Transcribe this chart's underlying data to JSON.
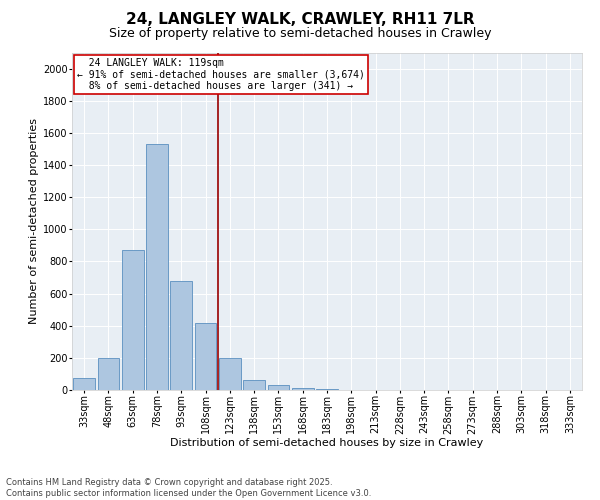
{
  "title": "24, LANGLEY WALK, CRAWLEY, RH11 7LR",
  "subtitle": "Size of property relative to semi-detached houses in Crawley",
  "xlabel": "Distribution of semi-detached houses by size in Crawley",
  "ylabel": "Number of semi-detached properties",
  "categories": [
    "33sqm",
    "48sqm",
    "63sqm",
    "78sqm",
    "93sqm",
    "108sqm",
    "123sqm",
    "138sqm",
    "153sqm",
    "168sqm",
    "183sqm",
    "198sqm",
    "213sqm",
    "228sqm",
    "243sqm",
    "258sqm",
    "273sqm",
    "288sqm",
    "303sqm",
    "318sqm",
    "333sqm"
  ],
  "values": [
    75,
    200,
    870,
    1530,
    680,
    415,
    200,
    65,
    30,
    12,
    5,
    0,
    0,
    0,
    0,
    0,
    0,
    0,
    0,
    0,
    0
  ],
  "bar_color": "#adc6e0",
  "bar_edge_color": "#5a8fc0",
  "vline_pos": 5.5,
  "annotation_line1": "24 LANGLEY WALK: 119sqm",
  "annotation_line2": "← 91% of semi-detached houses are smaller (3,674)",
  "annotation_line3": "8% of semi-detached houses are larger (341) →",
  "annotation_box_color": "#cc0000",
  "ylim": [
    0,
    2100
  ],
  "yticks": [
    0,
    200,
    400,
    600,
    800,
    1000,
    1200,
    1400,
    1600,
    1800,
    2000
  ],
  "background_color": "#e8eef4",
  "footer_line1": "Contains HM Land Registry data © Crown copyright and database right 2025.",
  "footer_line2": "Contains public sector information licensed under the Open Government Licence v3.0.",
  "title_fontsize": 11,
  "subtitle_fontsize": 9,
  "xlabel_fontsize": 8,
  "ylabel_fontsize": 8,
  "tick_fontsize": 7,
  "annotation_fontsize": 7,
  "footer_fontsize": 6
}
